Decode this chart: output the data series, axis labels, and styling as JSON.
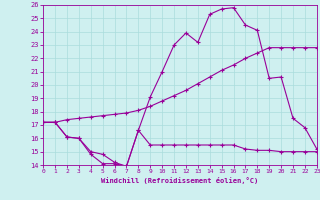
{
  "xlabel": "Windchill (Refroidissement éolien,°C)",
  "bg_color": "#cff0f0",
  "line_color": "#990099",
  "grid_color": "#aadddd",
  "xlim": [
    0,
    23
  ],
  "ylim": [
    14,
    26
  ],
  "xticks": [
    0,
    1,
    2,
    3,
    4,
    5,
    6,
    7,
    8,
    9,
    10,
    11,
    12,
    13,
    14,
    15,
    16,
    17,
    18,
    19,
    20,
    21,
    22,
    23
  ],
  "yticks": [
    14,
    15,
    16,
    17,
    18,
    19,
    20,
    21,
    22,
    23,
    24,
    25,
    26
  ],
  "series1_x": [
    0,
    1,
    2,
    3,
    4,
    5,
    6,
    7,
    8,
    9,
    10,
    11,
    12,
    13,
    14,
    15,
    16,
    17,
    18,
    19,
    20,
    21,
    22,
    23
  ],
  "series1_y": [
    17.2,
    17.2,
    16.1,
    16.0,
    14.8,
    14.1,
    14.1,
    13.9,
    16.6,
    15.5,
    15.5,
    15.5,
    15.5,
    15.5,
    15.5,
    15.5,
    15.5,
    15.2,
    15.1,
    15.1,
    15.0,
    15.0,
    15.0,
    15.0
  ],
  "series2_x": [
    0,
    1,
    2,
    3,
    4,
    5,
    6,
    7,
    8,
    9,
    10,
    11,
    12,
    13,
    14,
    15,
    16,
    17,
    18,
    19,
    20,
    21,
    22,
    23
  ],
  "series2_y": [
    17.2,
    17.2,
    17.4,
    17.5,
    17.6,
    17.7,
    17.8,
    17.9,
    18.1,
    18.4,
    18.8,
    19.2,
    19.6,
    20.1,
    20.6,
    21.1,
    21.5,
    22.0,
    22.4,
    22.8,
    22.8,
    22.8,
    22.8,
    22.8
  ],
  "series3_x": [
    0,
    1,
    2,
    3,
    4,
    5,
    6,
    7,
    8,
    9,
    10,
    11,
    12,
    13,
    14,
    15,
    16,
    17,
    18,
    19,
    20,
    21,
    22,
    23
  ],
  "series3_y": [
    17.2,
    17.2,
    16.1,
    16.0,
    15.0,
    14.8,
    14.2,
    13.9,
    16.6,
    19.1,
    21.0,
    23.0,
    23.9,
    23.2,
    25.3,
    25.7,
    25.8,
    24.5,
    24.1,
    20.5,
    20.6,
    17.5,
    16.8,
    15.2
  ]
}
